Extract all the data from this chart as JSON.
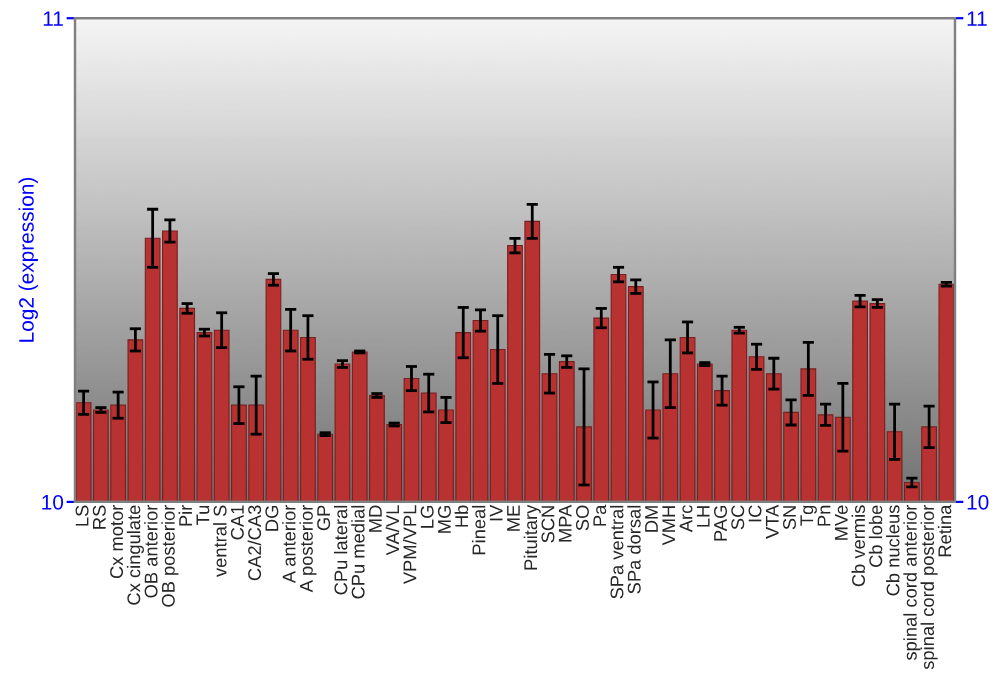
{
  "chart_data": {
    "type": "bar",
    "ylabel": "Log2 (expression)",
    "categories": [
      "LS",
      "RS",
      "Cx motor",
      "Cx cingulate",
      "OB anterior",
      "OB posterior",
      "Pir",
      "Tu",
      "ventral S",
      "CA1",
      "CA2/CA3",
      "DG",
      "A anterior",
      "A posterior",
      "GP",
      "CPu lateral",
      "CPu medial",
      "MD",
      "VA/VL",
      "VPM/VPL",
      "LG",
      "MG",
      "Hb",
      "Pineal",
      "IV",
      "ME",
      "Pituitary",
      "SCN",
      "MPA",
      "SO",
      "Pa",
      "SPa ventral",
      "SPa dorsal",
      "DM",
      "VMH",
      "Arc",
      "LH",
      "PAG",
      "SC",
      "IC",
      "VTA",
      "SN",
      "Tg",
      "Pn",
      "MVe",
      "Cb vermis",
      "Cb lobe",
      "Cb nucleus",
      "spinal cord anterior",
      "spinal cord posterior",
      "Retina"
    ],
    "series": [
      {
        "color": "#b83232",
        "values": [
          10.205,
          10.19,
          10.2,
          10.335,
          10.545,
          10.56,
          10.4,
          10.35,
          10.355,
          10.2,
          10.2,
          10.46,
          10.355,
          10.34,
          10.14,
          10.285,
          10.31,
          10.22,
          10.16,
          10.255,
          10.225,
          10.19,
          10.35,
          10.375,
          10.315,
          10.53,
          10.58,
          10.265,
          10.29,
          10.155,
          10.38,
          10.47,
          10.445,
          10.19,
          10.265,
          10.34,
          10.285,
          10.23,
          10.355,
          10.3,
          10.265,
          10.185,
          10.275,
          10.18,
          10.175,
          10.415,
          10.41,
          10.145,
          10.04,
          10.155,
          10.45
        ],
        "errors": [
          0.024,
          0.005,
          0.027,
          0.023,
          0.06,
          0.023,
          0.01,
          0.007,
          0.036,
          0.038,
          0.06,
          0.012,
          0.043,
          0.045,
          0.003,
          0.007,
          0.002,
          0.004,
          0.003,
          0.025,
          0.039,
          0.026,
          0.052,
          0.022,
          0.07,
          0.015,
          0.035,
          0.04,
          0.012,
          0.12,
          0.02,
          0.015,
          0.014,
          0.058,
          0.07,
          0.032,
          0.003,
          0.03,
          0.006,
          0.026,
          0.032,
          0.026,
          0.055,
          0.022,
          0.07,
          0.012,
          0.008,
          0.057,
          0.009,
          0.043,
          0.004
        ]
      }
    ],
    "ylim": [
      10,
      11
    ],
    "yticks": [
      10,
      11
    ],
    "y2lim": [
      10,
      11
    ],
    "y2ticks": [
      10,
      11
    ],
    "grid": false,
    "legend": false
  }
}
